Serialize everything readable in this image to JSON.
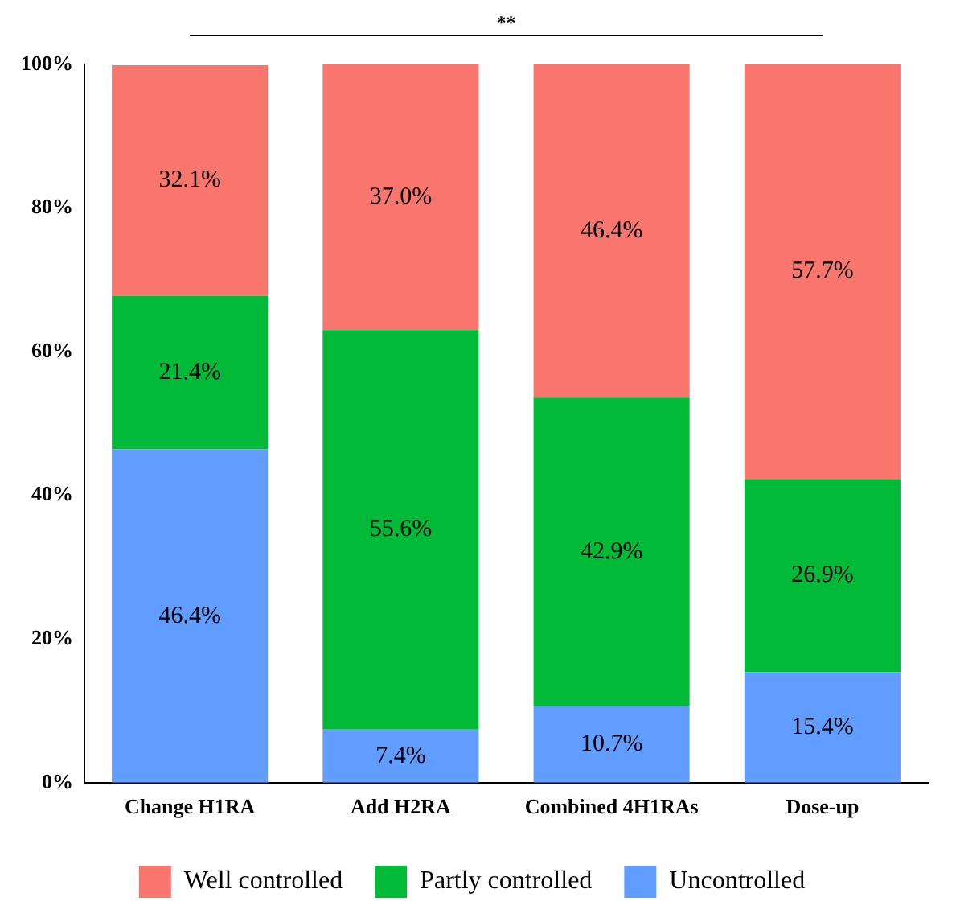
{
  "chart_data": {
    "type": "bar",
    "stacked": true,
    "categories": [
      "Change H1RA",
      "Add H2RA",
      "Combined 4H1RAs",
      "Dose-up"
    ],
    "series": [
      {
        "name": "Uncontrolled",
        "color": "#619cff",
        "values": [
          46.4,
          7.4,
          10.7,
          15.4
        ],
        "value_labels": [
          "46.4%",
          "7.4%",
          "10.7%",
          "15.4%"
        ]
      },
      {
        "name": "Partly controlled",
        "color": "#00ba38",
        "values": [
          21.4,
          55.6,
          42.9,
          26.9
        ],
        "value_labels": [
          "21.4%",
          "55.6%",
          "42.9%",
          "26.9%"
        ]
      },
      {
        "name": "Well controlled",
        "color": "#f8766d",
        "values": [
          32.1,
          37.0,
          46.4,
          57.7
        ],
        "value_labels": [
          "32.1%",
          "37.0%",
          "46.4%",
          "57.7%"
        ]
      }
    ],
    "ylim": [
      0,
      100
    ],
    "yticks": [
      {
        "value": 0,
        "label": "0%"
      },
      {
        "value": 20,
        "label": "20%"
      },
      {
        "value": 40,
        "label": "40%"
      },
      {
        "value": 60,
        "label": "60%"
      },
      {
        "value": 80,
        "label": "80%"
      },
      {
        "value": 100,
        "label": "100%"
      }
    ],
    "grid": false,
    "legend": "bottom",
    "annotations": [
      "**"
    ]
  }
}
